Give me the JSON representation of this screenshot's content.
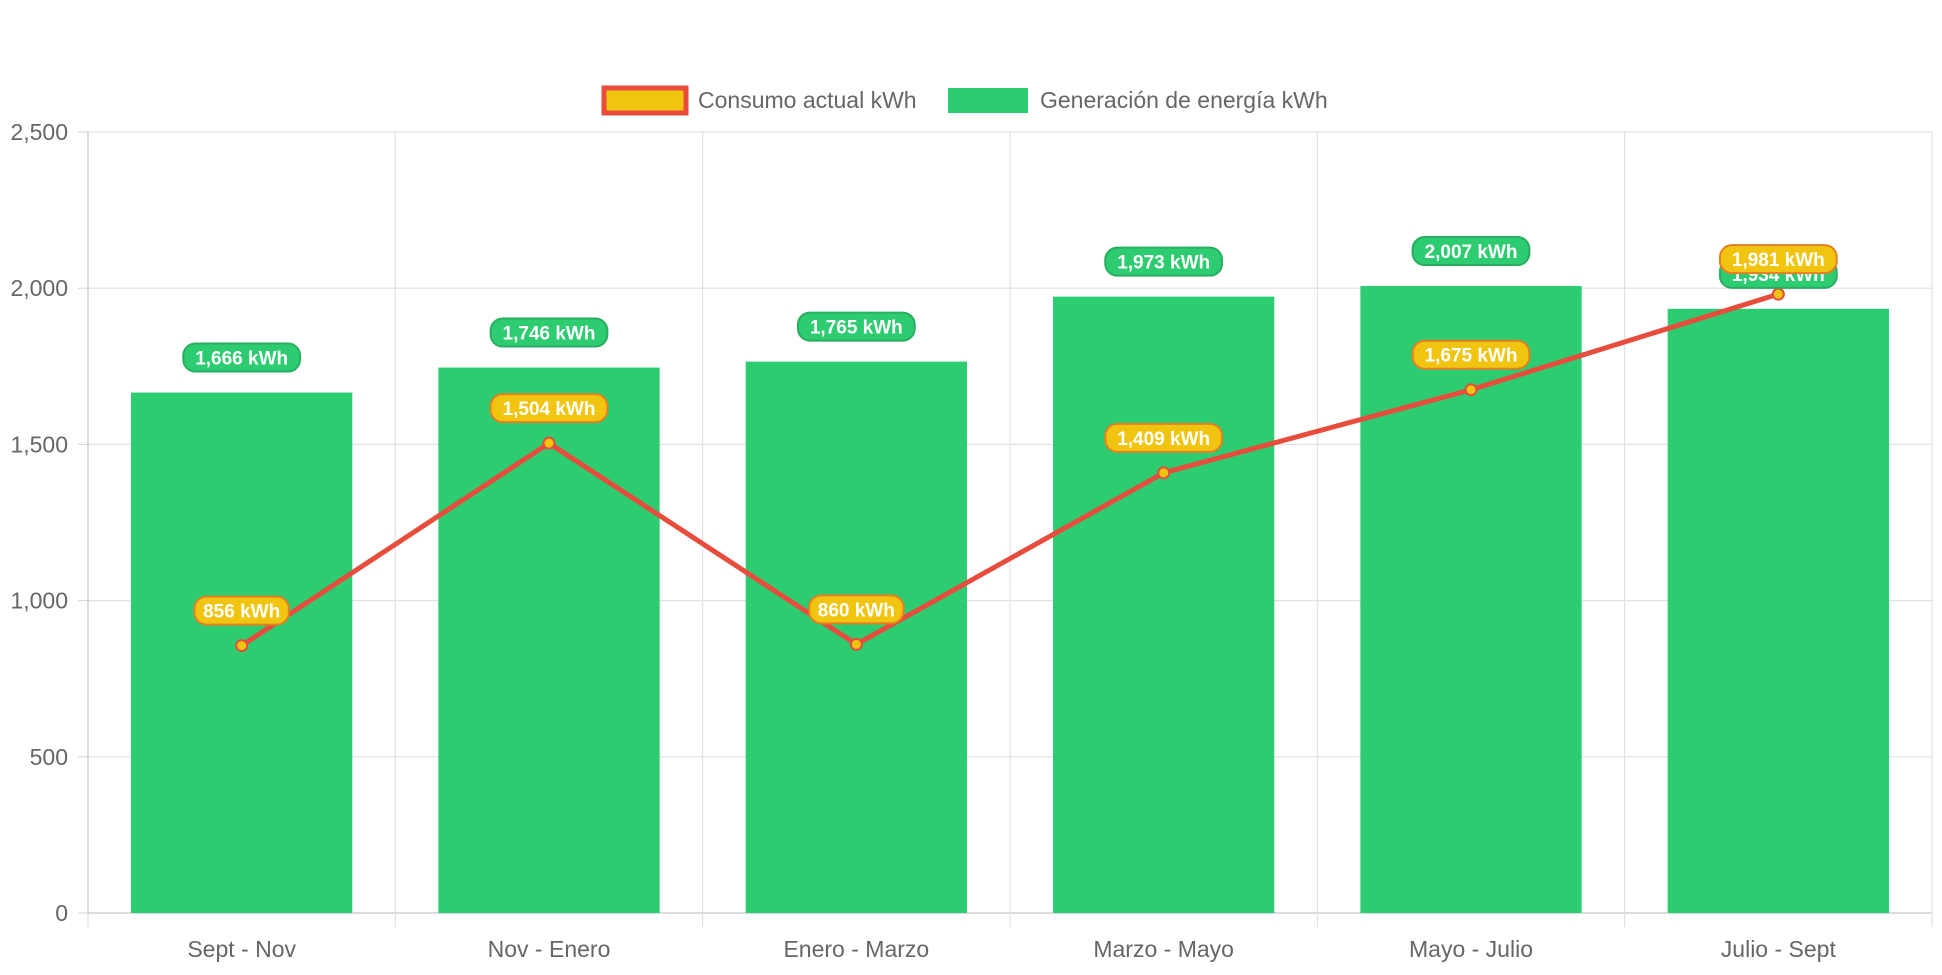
{
  "chart_data": {
    "type": "bar",
    "title": "",
    "xlabel": "",
    "ylabel": "",
    "ylim": [
      0,
      2500
    ],
    "yticks": [
      0,
      500,
      1000,
      1500,
      2000,
      2500
    ],
    "ytick_labels": [
      "0",
      "500",
      "1,000",
      "1,500",
      "2,000",
      "2,500"
    ],
    "grid": true,
    "legend_position": "top",
    "categories": [
      "Sept - Nov",
      "Nov - Enero",
      "Enero - Marzo",
      "Marzo - Mayo",
      "Mayo - Julio",
      "Julio - Sept"
    ],
    "series": [
      {
        "name": "Consumo actual kWh",
        "type": "line",
        "values": [
          856,
          1504,
          860,
          1409,
          1675,
          1981
        ],
        "labels": [
          "856 kWh",
          "1,504 kWh",
          "860 kWh",
          "1,409 kWh",
          "1,675 kWh",
          "1,981 kWh"
        ],
        "line_color": "#e74c3c",
        "fill_color": "#f1c40f",
        "show_label_first_point": true
      },
      {
        "name": "Generación de energía kWh",
        "type": "bar",
        "values": [
          1666,
          1746,
          1765,
          1973,
          2007,
          1934
        ],
        "labels": [
          "1,666 kWh",
          "1,746 kWh",
          "1,765 kWh",
          "1,973 kWh",
          "2,007 kWh",
          "1,934 kWh"
        ],
        "color": "#2ecc71"
      }
    ]
  }
}
